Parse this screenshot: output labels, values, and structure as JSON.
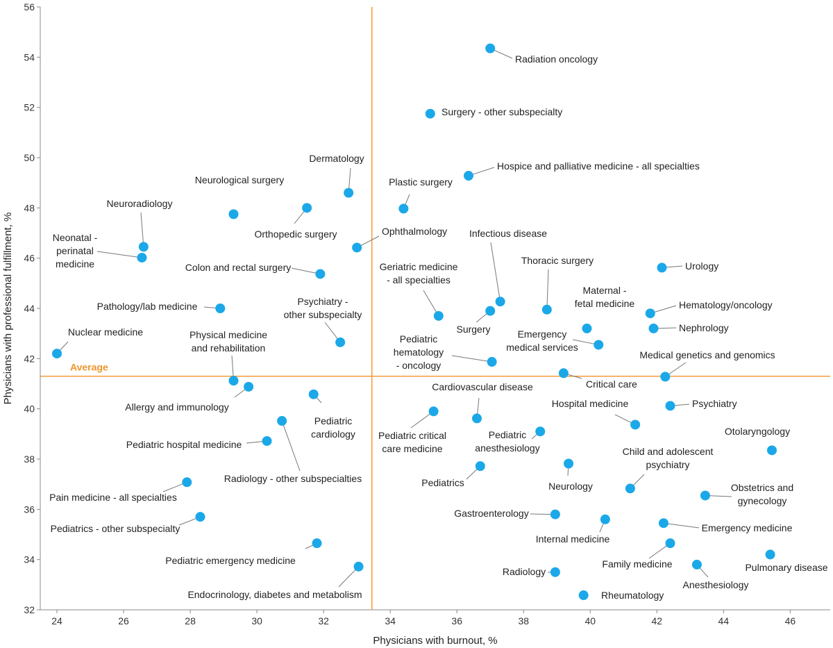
{
  "chart_data": {
    "type": "scatter",
    "xlabel": "Physicians with burnout, %",
    "ylabel": "Physicians with professional fulfillment, %",
    "xlim": [
      23.5,
      47.2
    ],
    "ylim": [
      32,
      56
    ],
    "xticks": [
      24,
      26,
      28,
      30,
      32,
      34,
      36,
      38,
      40,
      42,
      44,
      46
    ],
    "yticks": [
      32,
      34,
      36,
      38,
      40,
      42,
      44,
      46,
      48,
      50,
      52,
      54,
      56
    ],
    "average": {
      "label": "Average",
      "x": 33.45,
      "y": 41.3
    },
    "colors": {
      "point": "#1ba8e8",
      "average": "#f0952a",
      "axis": "#888888",
      "leader": "#777777"
    },
    "points": [
      {
        "name": "Radiation oncology",
        "x": 37.0,
        "y": 54.35
      },
      {
        "name": "Surgery - other subspecialty",
        "x": 35.2,
        "y": 51.75
      },
      {
        "name": "Hospice and palliative medicine - all specialties",
        "x": 36.35,
        "y": 49.28
      },
      {
        "name": "Dermatology",
        "x": 32.75,
        "y": 48.6
      },
      {
        "name": "Plastic surgery",
        "x": 34.4,
        "y": 47.97
      },
      {
        "name": "Neurological surgery",
        "x": 29.3,
        "y": 47.75
      },
      {
        "name": "Orthopedic surgery",
        "x": 31.5,
        "y": 48.0
      },
      {
        "name": "Neuroradiology",
        "x": 26.6,
        "y": 46.45
      },
      {
        "name": "Neonatal - perinatal medicine",
        "x": 26.55,
        "y": 46.02
      },
      {
        "name": "Ophthalmology",
        "x": 33.0,
        "y": 46.42
      },
      {
        "name": "Colon and rectal surgery",
        "x": 31.9,
        "y": 45.37
      },
      {
        "name": "Infectious disease",
        "x": 37.3,
        "y": 44.27
      },
      {
        "name": "Urology",
        "x": 42.15,
        "y": 45.62
      },
      {
        "name": "Thoracic surgery",
        "x": 38.7,
        "y": 43.95
      },
      {
        "name": "Pathology/lab medicine",
        "x": 28.9,
        "y": 44.0
      },
      {
        "name": "Geriatric medicine - all specialties",
        "x": 35.45,
        "y": 43.7
      },
      {
        "name": "Surgery",
        "x": 37.0,
        "y": 43.9
      },
      {
        "name": "Hematology/oncology",
        "x": 41.8,
        "y": 43.8
      },
      {
        "name": "Maternal - fetal medicine",
        "x": 39.9,
        "y": 43.2
      },
      {
        "name": "Nephrology",
        "x": 41.9,
        "y": 43.2
      },
      {
        "name": "Psychiatry - other subspecialty",
        "x": 32.5,
        "y": 42.65
      },
      {
        "name": "Nuclear medicine",
        "x": 24.0,
        "y": 42.2
      },
      {
        "name": "Emergency medical services",
        "x": 40.25,
        "y": 42.55
      },
      {
        "name": "Pediatric hematology - oncology",
        "x": 37.05,
        "y": 41.87
      },
      {
        "name": "Medical genetics and genomics",
        "x": 42.25,
        "y": 41.28
      },
      {
        "name": "Critical care",
        "x": 39.2,
        "y": 41.42
      },
      {
        "name": "Physical medicine and rehabilitation",
        "x": 29.3,
        "y": 41.12
      },
      {
        "name": "Allergy and immunology",
        "x": 29.75,
        "y": 40.88
      },
      {
        "name": "Pediatric cardiology",
        "x": 31.7,
        "y": 40.58
      },
      {
        "name": "Psychiatry",
        "x": 42.4,
        "y": 40.12
      },
      {
        "name": "Cardiovascular disease",
        "x": 36.6,
        "y": 39.62
      },
      {
        "name": "Pediatric critical care medicine",
        "x": 35.3,
        "y": 39.9
      },
      {
        "name": "Hospital medicine",
        "x": 41.35,
        "y": 39.37
      },
      {
        "name": "Radiology - other subspecialties",
        "x": 30.75,
        "y": 39.52
      },
      {
        "name": "Pediatric hospital medicine",
        "x": 30.3,
        "y": 38.72
      },
      {
        "name": "Pediatric anesthesiology",
        "x": 38.5,
        "y": 39.1
      },
      {
        "name": "Otolaryngology",
        "x": 45.45,
        "y": 38.35
      },
      {
        "name": "Neurology",
        "x": 39.35,
        "y": 37.82
      },
      {
        "name": "Pediatrics",
        "x": 36.7,
        "y": 37.72
      },
      {
        "name": "Child and adolescent psychiatry",
        "x": 41.2,
        "y": 36.83
      },
      {
        "name": "Pain medicine - all specialties",
        "x": 27.9,
        "y": 37.08
      },
      {
        "name": "Obstetrics and gynecology",
        "x": 43.45,
        "y": 36.55
      },
      {
        "name": "Gastroenterology",
        "x": 38.95,
        "y": 35.8
      },
      {
        "name": "Pediatrics - other subspecialty",
        "x": 28.3,
        "y": 35.7
      },
      {
        "name": "Internal medicine",
        "x": 40.45,
        "y": 35.6
      },
      {
        "name": "Emergency medicine",
        "x": 42.2,
        "y": 35.45
      },
      {
        "name": "Pediatric emergency medicine",
        "x": 31.8,
        "y": 34.65
      },
      {
        "name": "Family medicine",
        "x": 42.4,
        "y": 34.65
      },
      {
        "name": "Pulmonary disease",
        "x": 45.4,
        "y": 34.2
      },
      {
        "name": "Endocrinology, diabetes and metabolism",
        "x": 33.05,
        "y": 33.72
      },
      {
        "name": "Anesthesiology",
        "x": 43.2,
        "y": 33.8
      },
      {
        "name": "Radiology",
        "x": 38.95,
        "y": 33.5
      },
      {
        "name": "Rheumatology",
        "x": 39.8,
        "y": 32.58
      }
    ]
  }
}
